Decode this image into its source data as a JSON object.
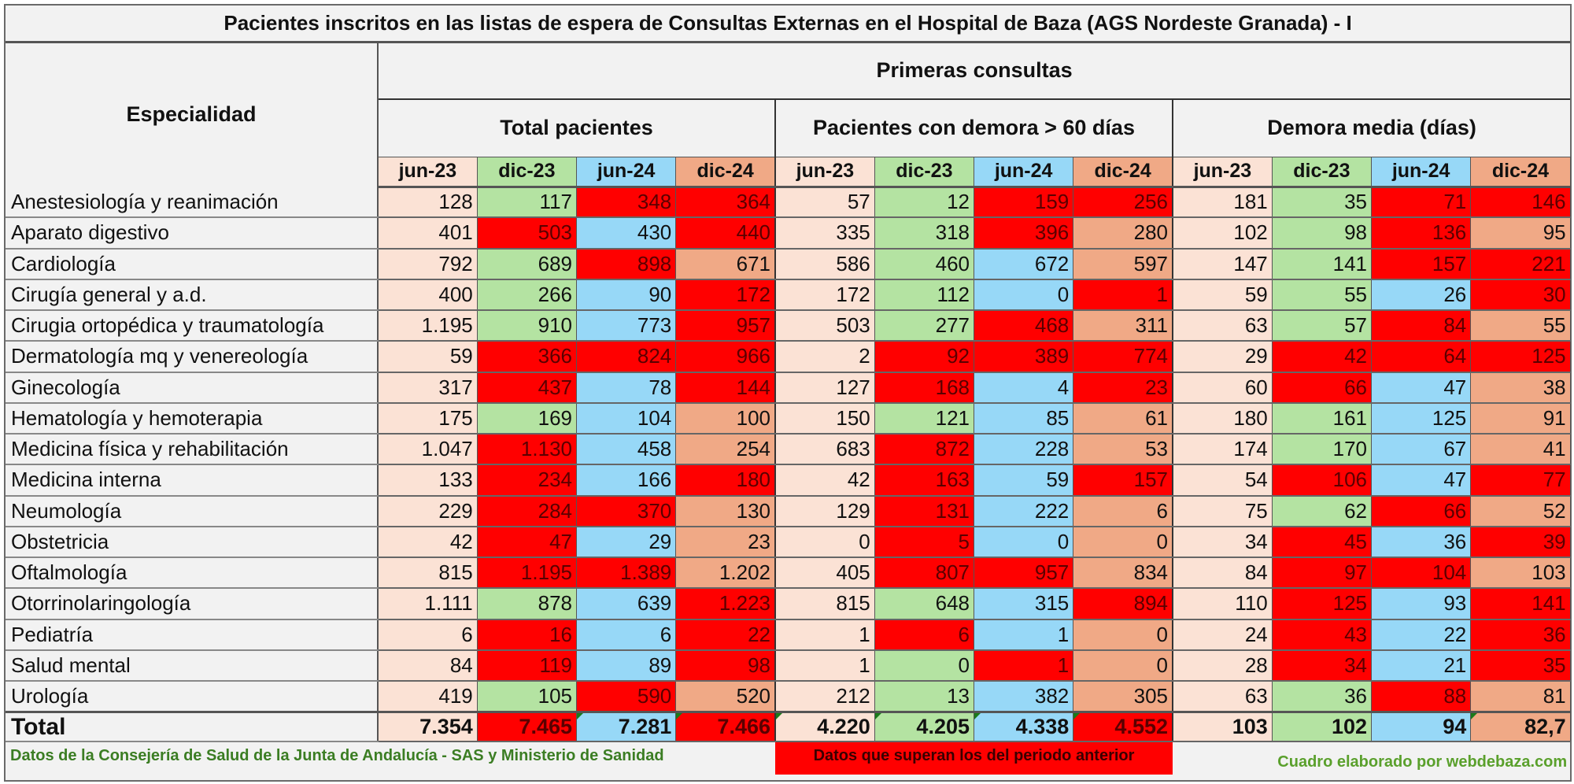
{
  "title": "Pacientes inscritos en las listas de espera de Consultas Externas en el Hospital de Baza  (AGS Nordeste Granada) - I",
  "header": {
    "specialty_label": "Especialidad",
    "section_label": "Primeras consultas",
    "groups": [
      "Total pacientes",
      "Pacientes con demora > 60 días",
      "Demora media (días)"
    ],
    "periods": [
      "jun-23",
      "dic-23",
      "jun-24",
      "dic-24"
    ]
  },
  "colors": {
    "jun-23": "#fbe2d5",
    "dic-23": "#b4e3a2",
    "jun-24": "#97d8f7",
    "dic-24": "#f0a986",
    "exceeds_previous": "#ff0000",
    "header_bg": "#f2f2f2",
    "source_text": "#3b7d23",
    "credit_text": "#5aa02c"
  },
  "rows": [
    {
      "name": "Anestesiología y reanimación",
      "values": [
        "128",
        "117",
        "348",
        "364",
        "57",
        "12",
        "159",
        "256",
        "181",
        "35",
        "71",
        "146"
      ],
      "flags": [
        0,
        0,
        1,
        1,
        0,
        0,
        1,
        1,
        0,
        0,
        1,
        1
      ]
    },
    {
      "name": "Aparato digestivo",
      "values": [
        "401",
        "503",
        "430",
        "440",
        "335",
        "318",
        "396",
        "280",
        "102",
        "98",
        "136",
        "95"
      ],
      "flags": [
        0,
        1,
        0,
        1,
        0,
        0,
        1,
        0,
        0,
        0,
        1,
        0
      ]
    },
    {
      "name": "Cardiología",
      "values": [
        "792",
        "689",
        "898",
        "671",
        "586",
        "460",
        "672",
        "597",
        "147",
        "141",
        "157",
        "221"
      ],
      "flags": [
        0,
        0,
        1,
        0,
        0,
        0,
        0,
        0,
        0,
        0,
        1,
        1
      ]
    },
    {
      "name": "Cirugía general y a.d.",
      "values": [
        "400",
        "266",
        "90",
        "172",
        "172",
        "112",
        "0",
        "1",
        "59",
        "55",
        "26",
        "30"
      ],
      "flags": [
        0,
        0,
        0,
        1,
        0,
        0,
        0,
        1,
        0,
        0,
        0,
        1
      ]
    },
    {
      "name": "Cirugia ortopédica y traumatología",
      "values": [
        "1.195",
        "910",
        "773",
        "957",
        "503",
        "277",
        "468",
        "311",
        "63",
        "57",
        "84",
        "55"
      ],
      "flags": [
        0,
        0,
        0,
        1,
        0,
        0,
        1,
        0,
        0,
        0,
        1,
        0
      ]
    },
    {
      "name": "Dermatología mq y venereología",
      "values": [
        "59",
        "366",
        "824",
        "966",
        "2",
        "92",
        "389",
        "774",
        "29",
        "42",
        "64",
        "125"
      ],
      "flags": [
        0,
        1,
        1,
        1,
        0,
        1,
        1,
        1,
        0,
        1,
        1,
        1
      ]
    },
    {
      "name": "Ginecología",
      "values": [
        "317",
        "437",
        "78",
        "144",
        "127",
        "168",
        "4",
        "23",
        "60",
        "66",
        "47",
        "38"
      ],
      "flags": [
        0,
        1,
        0,
        1,
        0,
        1,
        0,
        1,
        0,
        1,
        0,
        0
      ]
    },
    {
      "name": "Hematología y hemoterapia",
      "values": [
        "175",
        "169",
        "104",
        "100",
        "150",
        "121",
        "85",
        "61",
        "180",
        "161",
        "125",
        "91"
      ],
      "flags": [
        0,
        0,
        0,
        0,
        0,
        0,
        0,
        0,
        0,
        0,
        0,
        0
      ]
    },
    {
      "name": "Medicina física y rehabilitación",
      "values": [
        "1.047",
        "1.130",
        "458",
        "254",
        "683",
        "872",
        "228",
        "53",
        "174",
        "170",
        "67",
        "41"
      ],
      "flags": [
        0,
        1,
        0,
        0,
        0,
        1,
        0,
        0,
        0,
        0,
        0,
        0
      ]
    },
    {
      "name": "Medicina interna",
      "values": [
        "133",
        "234",
        "166",
        "180",
        "42",
        "163",
        "59",
        "157",
        "54",
        "106",
        "47",
        "77"
      ],
      "flags": [
        0,
        1,
        0,
        1,
        0,
        1,
        0,
        1,
        0,
        1,
        0,
        1
      ]
    },
    {
      "name": "Neumología",
      "values": [
        "229",
        "284",
        "370",
        "130",
        "129",
        "131",
        "222",
        "6",
        "75",
        "62",
        "66",
        "52"
      ],
      "flags": [
        0,
        1,
        1,
        0,
        0,
        1,
        0,
        0,
        0,
        0,
        1,
        0
      ]
    },
    {
      "name": "Obstetricia",
      "values": [
        "42",
        "47",
        "29",
        "23",
        "0",
        "5",
        "0",
        "0",
        "34",
        "45",
        "36",
        "39"
      ],
      "flags": [
        0,
        1,
        0,
        0,
        0,
        1,
        0,
        0,
        0,
        1,
        0,
        1
      ]
    },
    {
      "name": "Oftalmología",
      "values": [
        "815",
        "1.195",
        "1.389",
        "1.202",
        "405",
        "807",
        "957",
        "834",
        "84",
        "97",
        "104",
        "103"
      ],
      "flags": [
        0,
        1,
        1,
        0,
        0,
        1,
        1,
        0,
        0,
        1,
        1,
        0
      ]
    },
    {
      "name": "Otorrinolaringología",
      "values": [
        "1.111",
        "878",
        "639",
        "1.223",
        "815",
        "648",
        "315",
        "894",
        "110",
        "125",
        "93",
        "141"
      ],
      "flags": [
        0,
        0,
        0,
        1,
        0,
        0,
        0,
        1,
        0,
        1,
        0,
        1
      ]
    },
    {
      "name": "Pediatría",
      "values": [
        "6",
        "16",
        "6",
        "22",
        "1",
        "6",
        "1",
        "0",
        "24",
        "43",
        "22",
        "36"
      ],
      "flags": [
        0,
        1,
        0,
        1,
        0,
        1,
        0,
        0,
        0,
        1,
        0,
        1
      ]
    },
    {
      "name": "Salud mental",
      "values": [
        "84",
        "119",
        "89",
        "98",
        "1",
        "0",
        "1",
        "0",
        "28",
        "34",
        "21",
        "35"
      ],
      "flags": [
        0,
        1,
        0,
        1,
        0,
        0,
        1,
        0,
        0,
        1,
        0,
        1
      ]
    },
    {
      "name": "Urología",
      "values": [
        "419",
        "105",
        "590",
        "520",
        "212",
        "13",
        "382",
        "305",
        "63",
        "36",
        "88",
        "81"
      ],
      "flags": [
        0,
        0,
        1,
        0,
        0,
        0,
        0,
        0,
        0,
        0,
        1,
        0
      ]
    }
  ],
  "total": {
    "name": "Total",
    "values": [
      "7.354",
      "7.465",
      "7.281",
      "7.466",
      "4.220",
      "4.205",
      "4.338",
      "4.552",
      "103",
      "102",
      "94",
      "82,7"
    ],
    "flags": [
      0,
      1,
      0,
      1,
      0,
      0,
      0,
      1,
      0,
      0,
      0,
      0
    ],
    "corner_marks": [
      0,
      0,
      1,
      1,
      1,
      1,
      1,
      1,
      0,
      0,
      0,
      1
    ]
  },
  "footer": {
    "source": "Datos de la Consejería de Salud de  la Junta de Andalucía - SAS  y Ministerio de Sanidad",
    "legend": "Datos que superan los del periodo anterior",
    "credit": "Cuadro elaborado por webdebaza.com"
  }
}
